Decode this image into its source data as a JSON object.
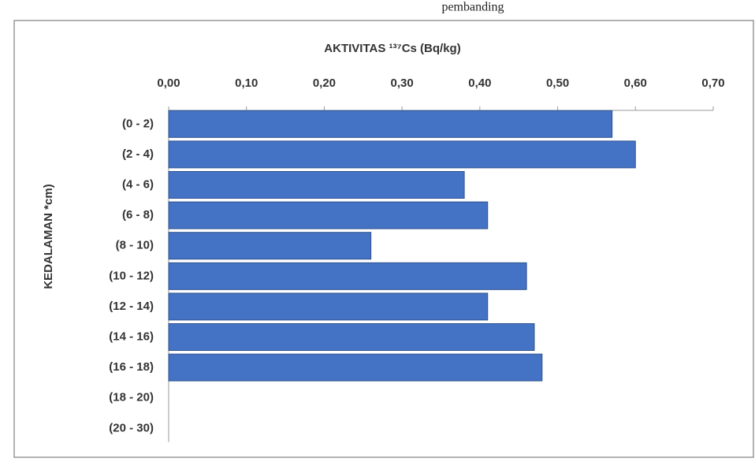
{
  "chart_data": {
    "type": "bar",
    "orientation": "horizontal",
    "note": "pembanding",
    "title": "AKTIVITAS ¹³⁷Cs  (Bq/kg)",
    "ylabel": "KEDALAMAN  *cm)",
    "categories": [
      "(0 - 2)",
      "(2 - 4)",
      "(4 - 6)",
      "(6 - 8)",
      "(8 - 10)",
      "(10 - 12)",
      "(12 - 14)",
      "(14 - 16)",
      "(16 - 18)",
      "(18 - 20)",
      "(20 - 30)"
    ],
    "values": [
      0.57,
      0.6,
      0.38,
      0.41,
      0.26,
      0.46,
      0.41,
      0.47,
      0.48,
      null,
      null
    ],
    "color": "#4472c4",
    "xlim": [
      0,
      0.7
    ],
    "xticks": [
      {
        "value": 0,
        "label": "0,00"
      },
      {
        "value": 0.1,
        "label": "0,10"
      },
      {
        "value": 0.2,
        "label": "0,20"
      },
      {
        "value": 0.3,
        "label": "0,30"
      },
      {
        "value": 0.4,
        "label": "0,40"
      },
      {
        "value": 0.5,
        "label": "0,50"
      },
      {
        "value": 0.6,
        "label": "0,60"
      },
      {
        "value": 0.7,
        "label": "0,70"
      }
    ],
    "grid": false
  }
}
